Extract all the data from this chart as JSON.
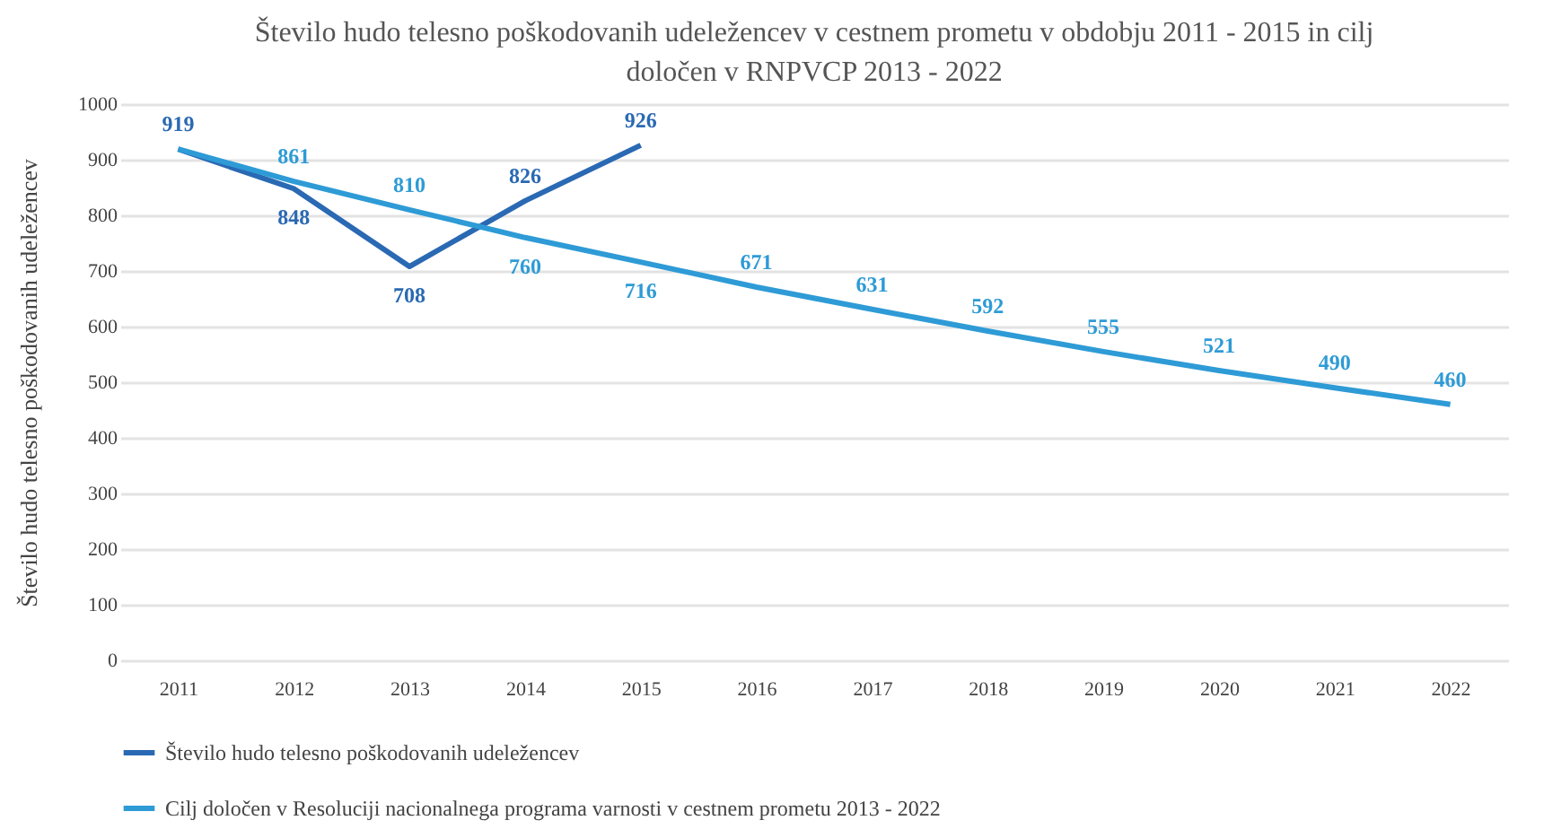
{
  "chart_data": {
    "type": "line",
    "title": "Število hudo telesno poškodovanih udeležencev v cestnem prometu v obdobju 2011 - 2015 in cilj določen v RNPVCP 2013 - 2022",
    "ylabel": "Število hudo telesno poškodovanih udeležencev",
    "categories": [
      "2011",
      "2012",
      "2013",
      "2014",
      "2015",
      "2016",
      "2017",
      "2018",
      "2019",
      "2020",
      "2021",
      "2022"
    ],
    "series": [
      {
        "name": "Število hudo telesno poškodovanih udeležencev",
        "color": "#2a69b3",
        "values": [
          919,
          848,
          708,
          826,
          926,
          null,
          null,
          null,
          null,
          null,
          null,
          null
        ],
        "value_labels": [
          "919",
          "848",
          "708",
          "826",
          "926",
          null,
          null,
          null,
          null,
          null,
          null,
          null
        ]
      },
      {
        "name": "Cilj določen v Resoluciji nacionalnega programa varnosti v cestnem prometu 2013 - 2022",
        "color": "#2e9bd6",
        "values": [
          919,
          861,
          810,
          760,
          716,
          671,
          631,
          592,
          555,
          521,
          490,
          460
        ],
        "value_labels": [
          null,
          "861",
          "810",
          "760",
          "716",
          "671",
          "631",
          "592",
          "555",
          "521",
          "490",
          "460"
        ]
      }
    ],
    "ylim": [
      0,
      1000
    ],
    "yticks": [
      0,
      100,
      200,
      300,
      400,
      500,
      600,
      700,
      800,
      900,
      1000
    ],
    "grid": "y",
    "legend": "bottom",
    "marker": "none",
    "line_style": "solid"
  }
}
